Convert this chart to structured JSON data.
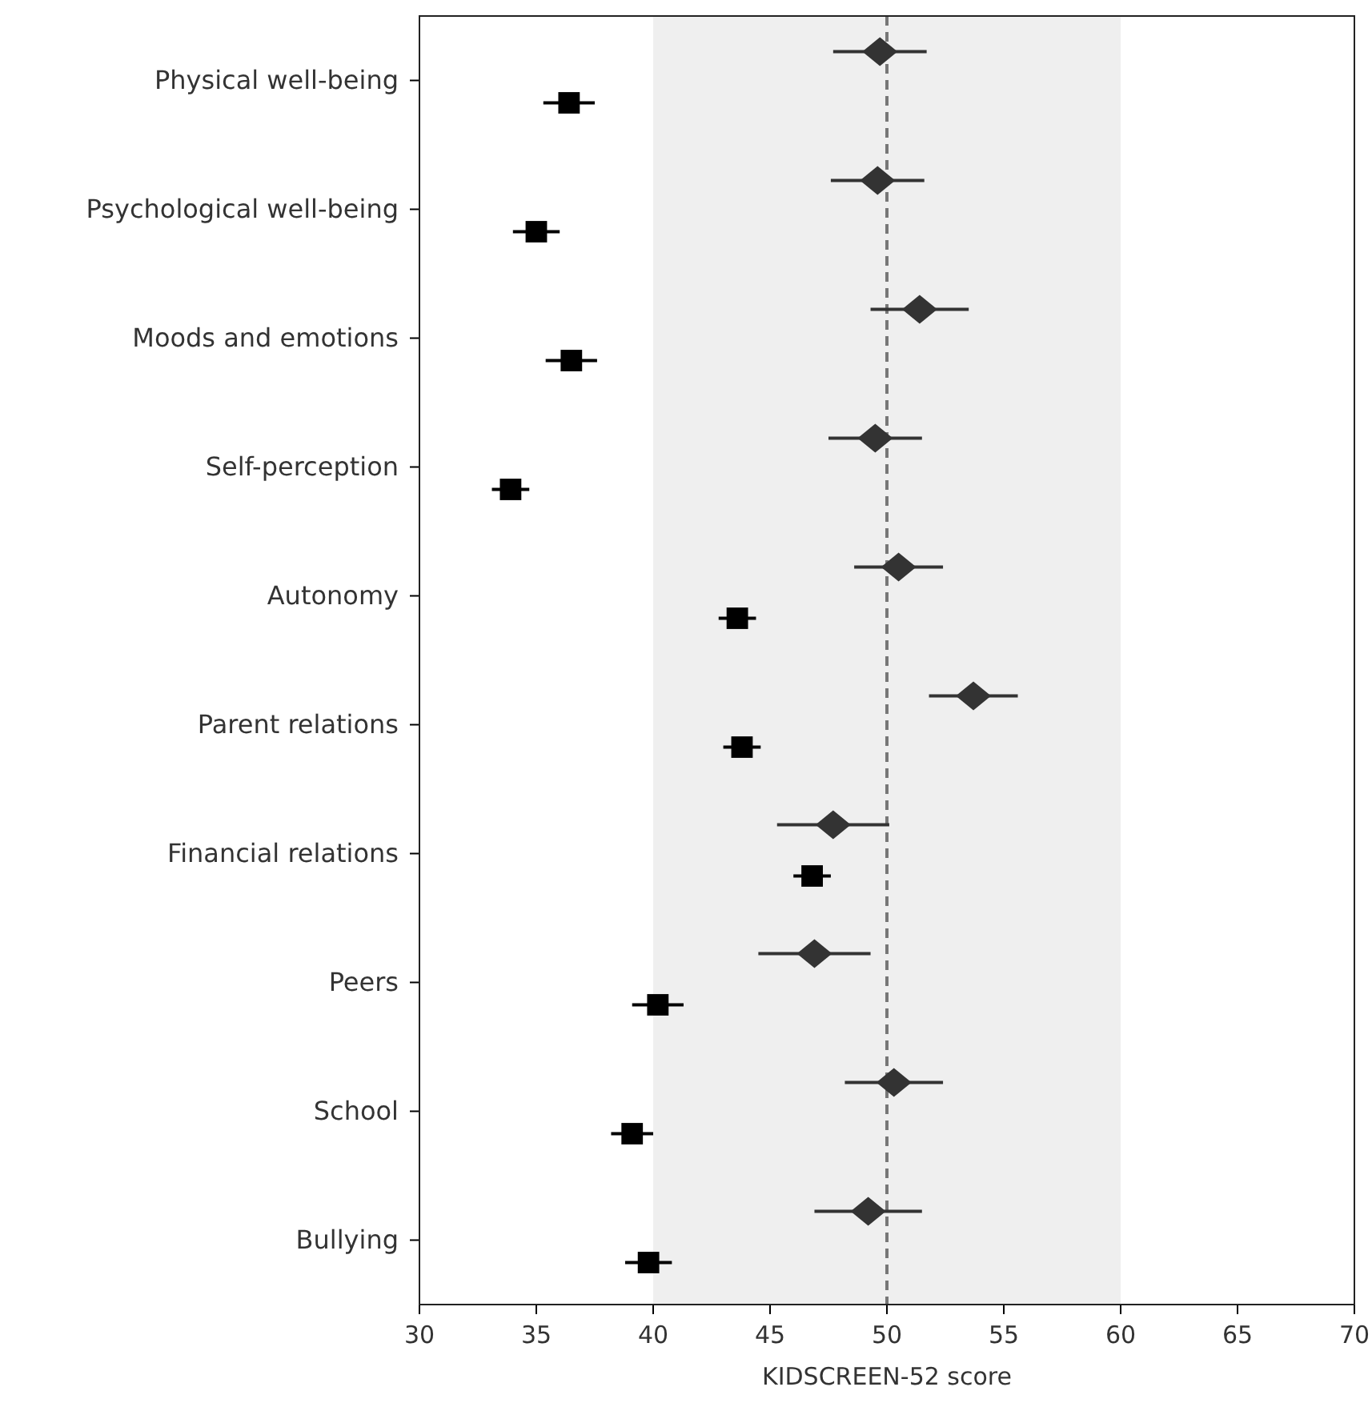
{
  "chart_data": {
    "type": "scatter",
    "orientation": "horizontal",
    "xlabel": "KIDSCREEN-52 score",
    "categories": [
      "Physical well-being",
      "Psychological well-being",
      "Moods and emotions",
      "Self-perception",
      "Autonomy",
      "Parent relations",
      "Financial relations",
      "Peers",
      "School",
      "Bullying"
    ],
    "series": [
      {
        "color": "#333333",
        "marker": "diamond",
        "values": [
          49.7,
          49.6,
          51.4,
          49.5,
          50.5,
          53.7,
          47.7,
          46.9,
          50.3,
          49.2
        ],
        "errors": [
          2.0,
          2.0,
          2.1,
          2.0,
          1.9,
          1.9,
          2.4,
          2.4,
          2.1,
          2.3
        ]
      },
      {
        "color": "#000000",
        "marker": "square",
        "values": [
          36.4,
          35.0,
          36.5,
          33.9,
          43.6,
          43.8,
          46.8,
          40.2,
          39.1,
          39.8
        ],
        "errors": [
          1.1,
          1.0,
          1.1,
          0.8,
          0.8,
          0.8,
          0.8,
          1.1,
          0.9,
          1.0
        ]
      }
    ],
    "xlim": [
      30,
      70
    ],
    "xticks": [
      30,
      35,
      40,
      45,
      50,
      55,
      60,
      65,
      70
    ],
    "bands": [
      {
        "axis": "x",
        "from": 40,
        "to": 60,
        "color": "#efefef"
      }
    ],
    "ref_lines": [
      {
        "axis": "x",
        "value": 50,
        "color": "#777777",
        "line_style": "dashed"
      }
    ],
    "grid": false
  }
}
